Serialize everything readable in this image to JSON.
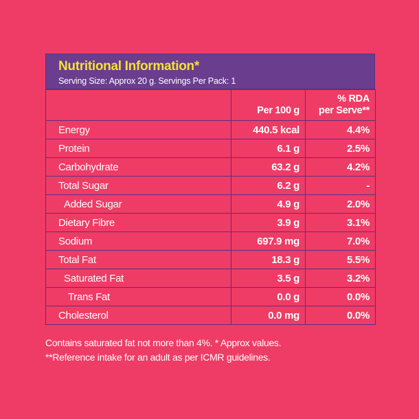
{
  "header": {
    "title": "Nutritional Information*",
    "serving": "Serving Size: Approx 20 g. Servings Per Pack: 1"
  },
  "columns": {
    "per100g": "Per 100 g",
    "rda_line1": "% RDA",
    "rda_line2": "per Serve**"
  },
  "rows": [
    {
      "name": "Energy",
      "per100g": "440.5 kcal",
      "rda": "4.4%"
    },
    {
      "name": "Protein",
      "per100g": "6.1 g",
      "rda": "2.5%"
    },
    {
      "name": "Carbohydrate",
      "per100g": "63.2 g",
      "rda": "4.2%"
    },
    {
      "name": "Total Sugar",
      "per100g": "6.2 g",
      "rda": "-"
    },
    {
      "name": "Added Sugar",
      "per100g": "4.9 g",
      "rda": "2.0%"
    },
    {
      "name": "Dietary Fibre",
      "per100g": "3.9 g",
      "rda": "3.1%"
    },
    {
      "name": "Sodium",
      "per100g": "697.9 mg",
      "rda": "7.0%"
    },
    {
      "name": "Total Fat",
      "per100g": "18.3 g",
      "rda": "5.5%"
    },
    {
      "name": "Saturated Fat",
      "per100g": "3.5 g",
      "rda": "3.2%"
    },
    {
      "name": "Trans Fat",
      "per100g": "0.0 g",
      "rda": "0.0%"
    },
    {
      "name": "Cholesterol",
      "per100g": "0.0 mg",
      "rda": "0.0%"
    }
  ],
  "footer": {
    "line1": "Contains saturated fat not more than 4%. * Approx values.",
    "line2": "**Reference intake for an adult as per ICMR guidelines."
  },
  "colors": {
    "background": "#ee3c66",
    "header_bg": "#6a3d8f",
    "title": "#f5e230",
    "border": "#5b2f80"
  }
}
